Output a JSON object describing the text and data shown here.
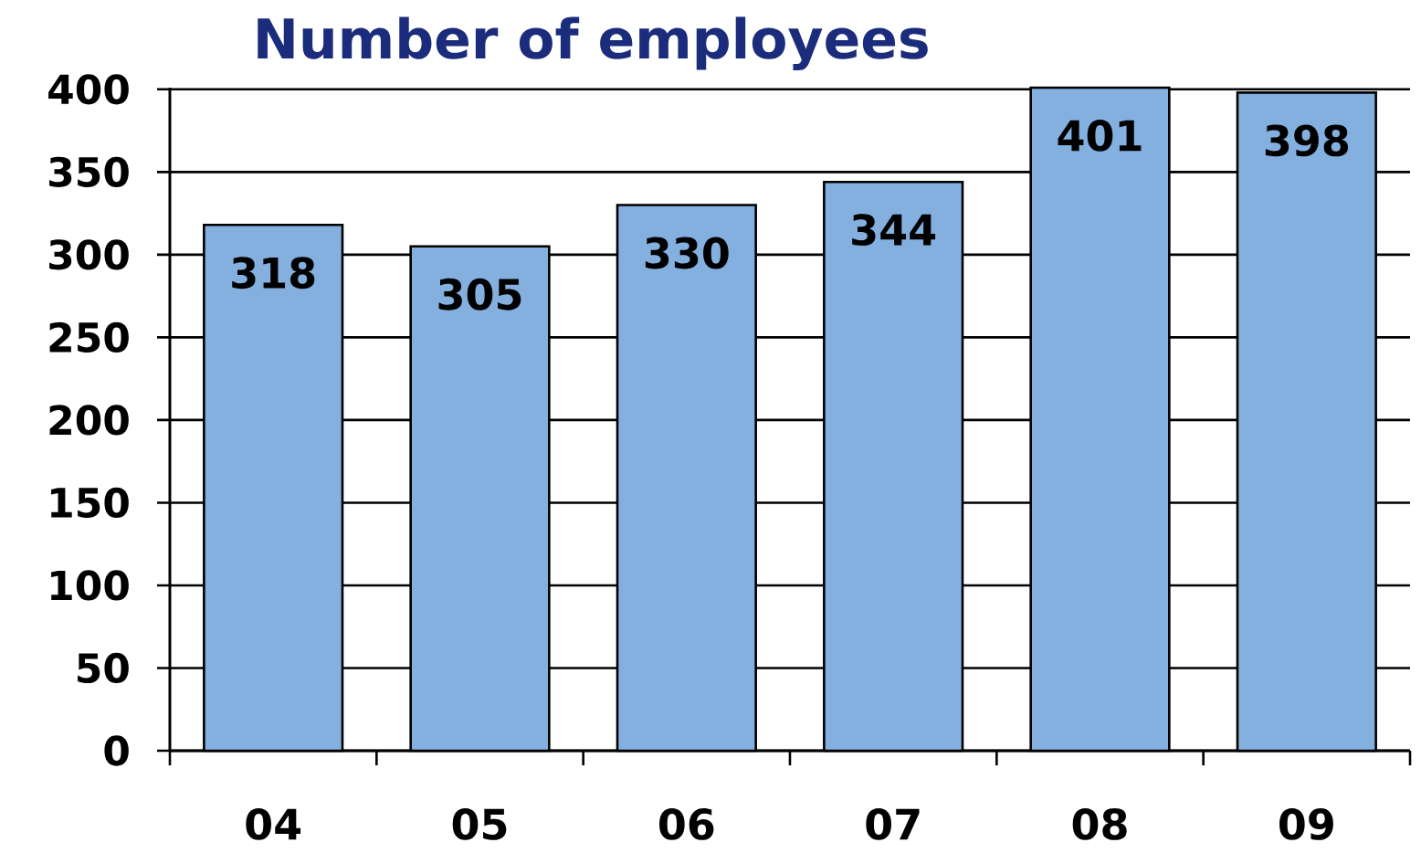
{
  "chart_data": {
    "type": "bar",
    "title": "Number of employees",
    "categories": [
      "04",
      "05",
      "06",
      "07",
      "08",
      "09"
    ],
    "values": [
      318,
      305,
      330,
      344,
      401,
      398
    ],
    "color": "#84b0e0",
    "ylim": [
      0,
      401
    ],
    "yticks": [
      0,
      50,
      100,
      150,
      200,
      250,
      300,
      350,
      400
    ],
    "grid": "y",
    "data_labels": true
  }
}
